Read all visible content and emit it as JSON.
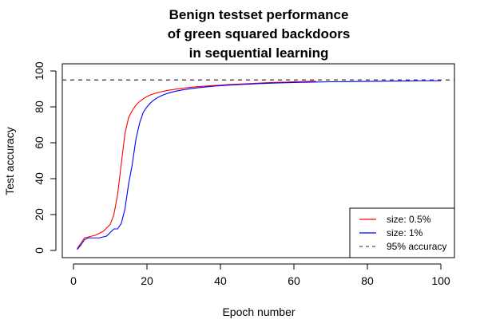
{
  "chart_data": {
    "type": "line",
    "title_lines": [
      "Benign testset performance",
      "of green squared backdoors",
      "in sequential learning"
    ],
    "xlabel": "Epoch number",
    "ylabel": "Test accuracy",
    "xlim": [
      1,
      100
    ],
    "ylim": [
      0,
      100
    ],
    "x_ticks": [
      0,
      20,
      40,
      60,
      80,
      100
    ],
    "y_ticks": [
      0,
      20,
      40,
      60,
      80,
      100
    ],
    "grid": false,
    "legend_position": "bottom-right",
    "reference_line": {
      "name": "95% accuracy",
      "y": 95,
      "color": "#555555",
      "style": "dashed"
    },
    "series": [
      {
        "name": "size: 0.5%",
        "color": "#ff0000",
        "x": [
          1,
          2,
          3,
          4,
          5,
          6,
          7,
          8,
          9,
          10,
          11,
          12,
          13,
          14,
          15,
          16,
          17,
          18,
          19,
          20,
          21,
          22,
          23,
          24,
          25,
          26,
          27,
          28,
          29,
          30,
          32,
          34,
          36,
          38,
          40,
          42,
          44,
          46,
          48,
          50,
          52,
          54,
          56,
          58,
          60,
          62,
          64,
          66
        ],
        "y": [
          1,
          4,
          7,
          7.5,
          8,
          8.5,
          9.5,
          10.5,
          12.5,
          14.5,
          20,
          31,
          48,
          65,
          74,
          78,
          81,
          83,
          84.5,
          85.8,
          86.7,
          87.4,
          88,
          88.5,
          88.9,
          89.3,
          89.6,
          89.9,
          90.2,
          90.5,
          90.9,
          91.3,
          91.6,
          91.9,
          92.1,
          92.4,
          92.6,
          92.8,
          93,
          93.2,
          93.4,
          93.6,
          93.7,
          93.8,
          94,
          94.1,
          94.2,
          94.3
        ]
      },
      {
        "name": "size: 1%",
        "color": "#0000ff",
        "x": [
          1,
          2,
          3,
          4,
          5,
          6,
          7,
          8,
          9,
          10,
          11,
          12,
          13,
          14,
          15,
          16,
          17,
          18,
          19,
          20,
          21,
          22,
          23,
          24,
          25,
          26,
          27,
          28,
          29,
          30,
          32,
          34,
          36,
          38,
          40,
          42,
          44,
          46,
          48,
          50,
          55,
          60,
          65,
          70,
          75,
          80,
          85,
          90,
          95,
          100
        ],
        "y": [
          0.5,
          3,
          6,
          7,
          7,
          7,
          7,
          7.5,
          8,
          10,
          12,
          12,
          15,
          23,
          37,
          48,
          62,
          71,
          77,
          80,
          82.3,
          84,
          85.3,
          86.3,
          87.1,
          87.8,
          88.3,
          88.8,
          89.2,
          89.6,
          90.2,
          90.7,
          91.1,
          91.5,
          91.8,
          92.1,
          92.3,
          92.5,
          92.7,
          92.9,
          93.3,
          93.6,
          93.8,
          94,
          94.1,
          94.2,
          94.3,
          94.4,
          94.5,
          94.6
        ]
      }
    ]
  }
}
